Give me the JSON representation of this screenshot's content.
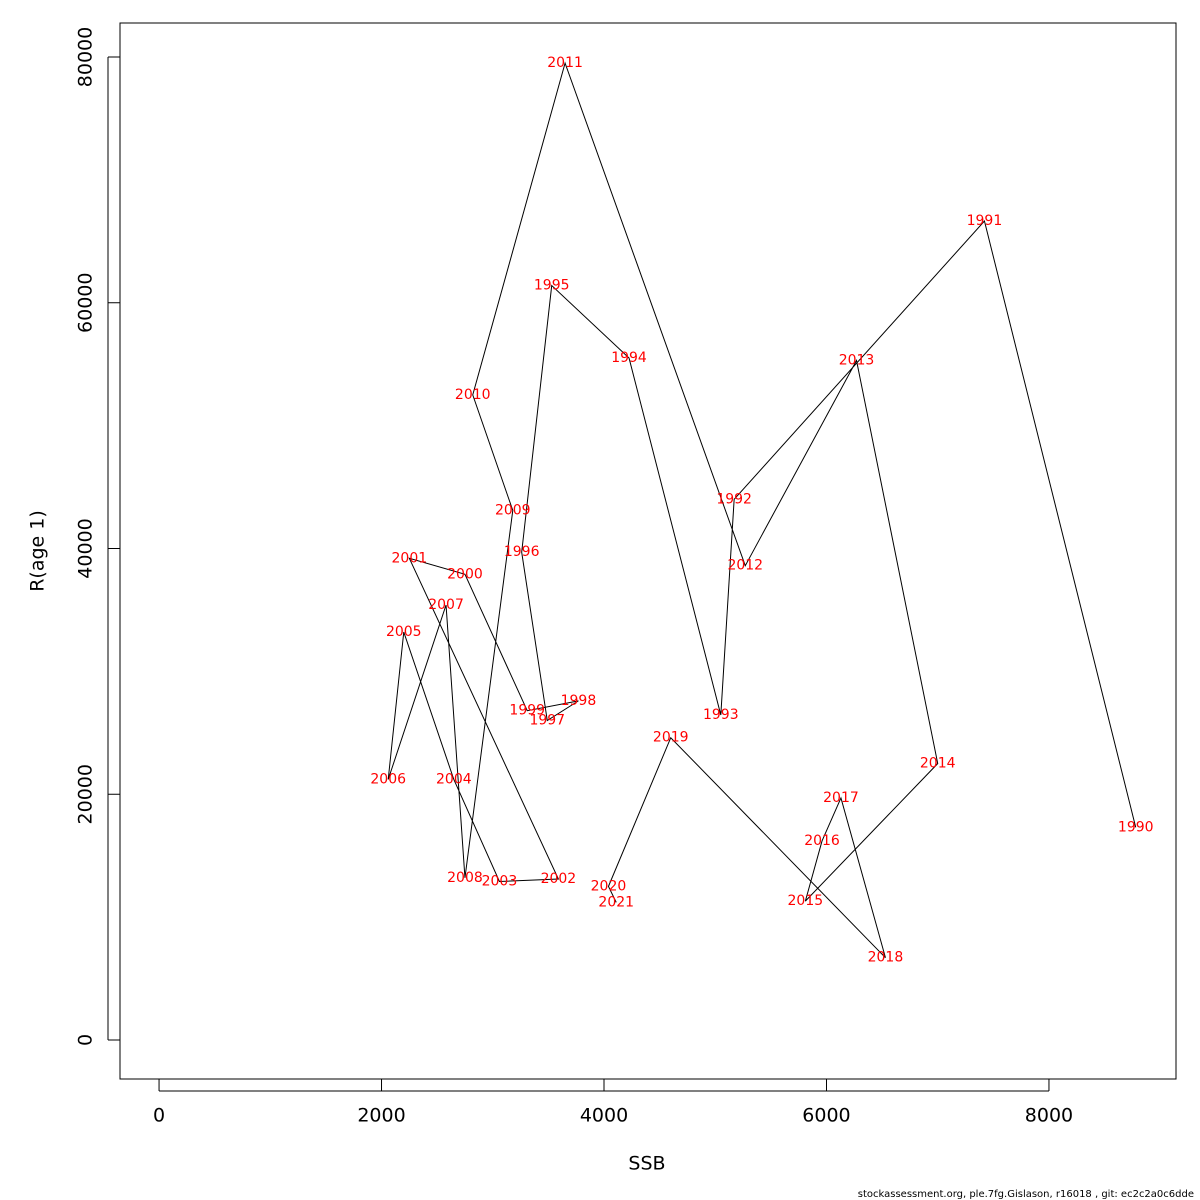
{
  "chart_data": {
    "type": "scatter-path",
    "xlabel": "SSB",
    "ylabel": "R(age 1)",
    "footer": "stockassessment.org, ple.7fg.Gislason, r16018 , git: ec2c2a0c6dde",
    "labels": [
      "1990",
      "1991",
      "1992",
      "1993",
      "1994",
      "1995",
      "1996",
      "1997",
      "1998",
      "1999",
      "2000",
      "2001",
      "2002",
      "2003",
      "2004",
      "2005",
      "2006",
      "2007",
      "2008",
      "2009",
      "2010",
      "2011",
      "2012",
      "2013",
      "2014",
      "2015",
      "2016",
      "2017",
      "2018",
      "2019",
      "2020",
      "2021"
    ],
    "x": [
      8780,
      7420,
      5170,
      5050,
      4225,
      3530,
      3260,
      3490,
      3770,
      3310,
      2750,
      2250,
      3590,
      3060,
      2650,
      2200,
      2060,
      2580,
      2750,
      3180,
      2820,
      3650,
      5270,
      6270,
      7000,
      5810,
      5960,
      6130,
      6530,
      4600,
      4040,
      4110
    ],
    "y": [
      17300,
      66650,
      44000,
      26450,
      55500,
      61400,
      39700,
      26000,
      27600,
      26800,
      37900,
      39200,
      13100,
      12900,
      21200,
      33200,
      21200,
      35400,
      13200,
      43100,
      52500,
      79500,
      38600,
      55300,
      22500,
      11300,
      16200,
      19700,
      6700,
      24600,
      12500,
      11200
    ],
    "line_color": "#000000",
    "label_color": "#ff0000",
    "xlim": [
      -351,
      9142
    ],
    "ylim": [
      -3174,
      82767
    ],
    "xticks": [
      0,
      2000,
      4000,
      6000,
      8000
    ],
    "yticks": [
      0,
      20000,
      40000,
      60000,
      80000
    ]
  }
}
